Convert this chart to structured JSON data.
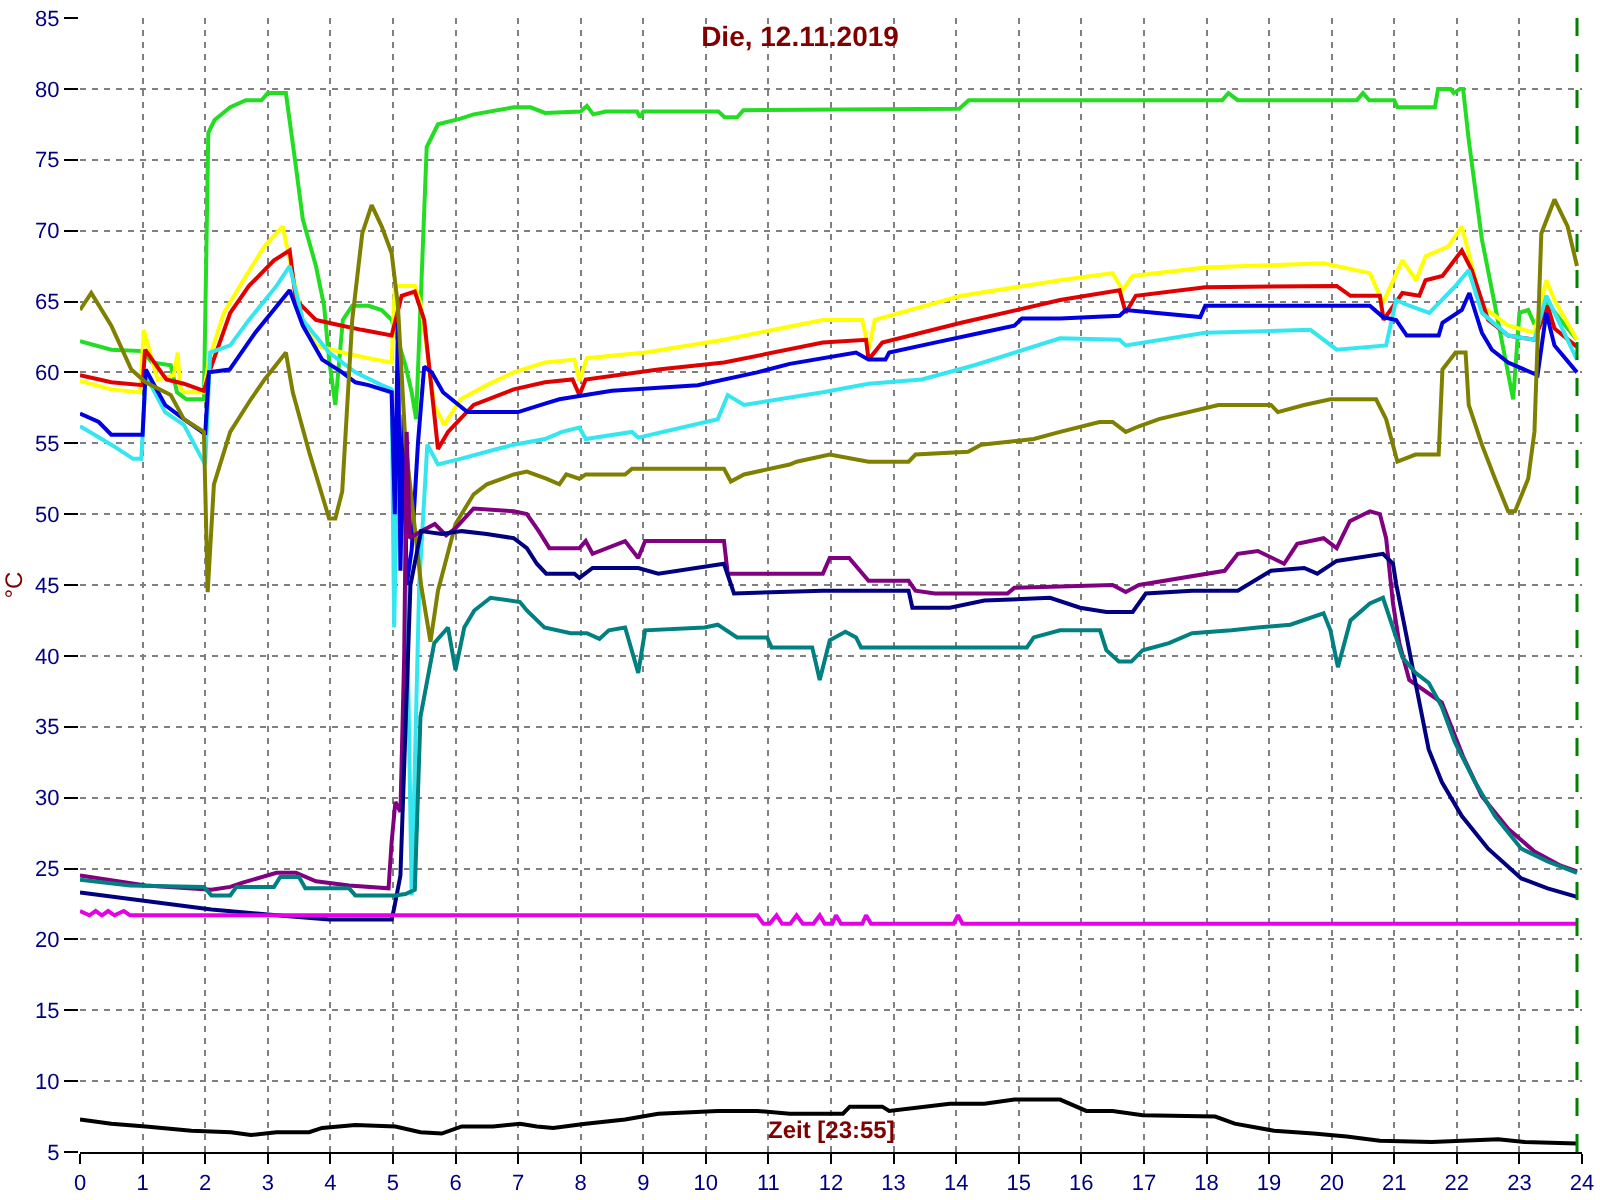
{
  "chart_data": {
    "type": "line",
    "title": "Die, 12.11.2019",
    "xlabel": "Zeit [23:55]",
    "ylabel": "°C",
    "xlim": [
      0,
      24
    ],
    "ylim": [
      5,
      85
    ],
    "xticks": [
      0,
      1,
      2,
      3,
      4,
      5,
      6,
      7,
      8,
      9,
      10,
      11,
      12,
      13,
      14,
      15,
      16,
      17,
      18,
      19,
      20,
      21,
      22,
      23,
      24
    ],
    "yticks": [
      5,
      10,
      15,
      20,
      25,
      30,
      35,
      40,
      45,
      50,
      55,
      60,
      65,
      70,
      75,
      80,
      85
    ],
    "grid": true,
    "marker": "none",
    "line_style": "solid",
    "ref_lines": [
      {
        "axis": "x",
        "value": 23.92,
        "color": "#008000",
        "line_style": "dashed"
      }
    ],
    "series": [
      {
        "color": "#22dd22",
        "x": [
          0,
          0.5,
          1.0,
          1.15,
          1.45,
          1.55,
          1.7,
          1.98,
          2.05,
          2.15,
          2.4,
          2.65,
          2.9,
          3.0,
          3.29,
          3.45,
          3.56,
          3.77,
          3.9,
          3.98,
          4.08,
          4.2,
          4.35,
          4.61,
          4.82,
          4.98,
          5.2,
          5.3,
          5.37,
          5.54,
          5.72,
          6.08,
          6.29,
          6.93,
          7.2,
          7.43,
          8.0,
          8.1,
          8.2,
          8.4,
          8.9,
          8.95,
          9.0,
          10.2,
          10.3,
          10.5,
          10.6,
          14.05,
          14.2,
          18.25,
          18.35,
          18.5,
          20.4,
          20.5,
          20.6,
          21.0,
          21.05,
          21.65,
          21.7,
          21.9,
          21.95,
          22.05,
          22.1,
          22.19,
          22.4,
          22.61,
          22.75,
          22.9,
          23.0,
          23.14,
          23.24,
          23.45,
          23.66,
          23.92
        ],
        "values": [
          62.2,
          61.6,
          61.5,
          60.7,
          60.5,
          58.6,
          58.1,
          58.1,
          76.9,
          77.8,
          78.7,
          79.2,
          79.2,
          79.7,
          79.7,
          74.5,
          70.8,
          67.5,
          64.7,
          60.9,
          57.7,
          63.7,
          64.7,
          64.7,
          64.4,
          63.7,
          60.5,
          58.6,
          56.7,
          75.9,
          77.5,
          77.9,
          78.2,
          78.7,
          78.7,
          78.3,
          78.4,
          78.8,
          78.2,
          78.4,
          78.4,
          78.0,
          78.4,
          78.4,
          78.0,
          78.0,
          78.5,
          78.6,
          79.2,
          79.2,
          79.7,
          79.2,
          79.2,
          79.7,
          79.2,
          79.2,
          78.7,
          78.7,
          80.0,
          80.0,
          79.7,
          80.0,
          80.0,
          76.4,
          69.4,
          64.7,
          61.5,
          58.1,
          64.2,
          64.4,
          63.4,
          64.9,
          63.7,
          62.3
        ]
      },
      {
        "color": "#ffff00",
        "x": [
          0,
          0.5,
          0.96,
          1.02,
          1.12,
          1.24,
          1.5,
          1.56,
          1.6,
          1.66,
          1.98,
          2.06,
          2.3,
          2.61,
          2.95,
          3.24,
          3.35,
          3.56,
          3.77,
          4.19,
          4.61,
          4.98,
          5.03,
          5.35,
          5.45,
          5.66,
          5.82,
          6.08,
          6.5,
          6.93,
          7.43,
          7.9,
          7.98,
          8.1,
          9.03,
          10.29,
          11.87,
          12.5,
          12.6,
          12.7,
          14.08,
          15.66,
          16.5,
          16.66,
          16.82,
          17.98,
          19.87,
          20.61,
          20.82,
          21.13,
          21.35,
          21.5,
          21.87,
          22.08,
          22.19,
          22.4,
          22.82,
          23.24,
          23.43,
          23.56,
          23.92
        ],
        "values": [
          59.4,
          58.8,
          58.6,
          63.0,
          61.4,
          59.5,
          59.8,
          61.4,
          59.0,
          58.6,
          58.6,
          60.9,
          64.2,
          66.5,
          68.9,
          70.3,
          67.9,
          63.7,
          61.9,
          61.4,
          61.0,
          60.7,
          66.1,
          66.1,
          64.7,
          57.7,
          56.3,
          58.1,
          59.1,
          60.0,
          60.7,
          60.9,
          59.4,
          61.0,
          61.4,
          62.3,
          63.7,
          63.7,
          61.6,
          63.7,
          65.4,
          66.5,
          67.0,
          65.8,
          66.8,
          67.4,
          67.7,
          67.0,
          64.9,
          67.9,
          66.5,
          68.2,
          68.9,
          70.3,
          68.4,
          64.7,
          63.3,
          62.8,
          66.5,
          65.1,
          62.3
        ]
      },
      {
        "color": "#e00000",
        "x": [
          0,
          0.5,
          1.0,
          1.04,
          1.38,
          1.66,
          1.98,
          2.08,
          2.4,
          2.7,
          3.1,
          3.35,
          3.45,
          3.77,
          4.08,
          4.5,
          4.98,
          5.14,
          5.35,
          5.5,
          5.72,
          5.88,
          6.29,
          6.93,
          7.43,
          7.87,
          7.98,
          8.08,
          9.24,
          10.29,
          11.87,
          12.56,
          12.6,
          12.82,
          14.08,
          15.66,
          16.61,
          16.71,
          16.87,
          17.98,
          20.08,
          20.3,
          20.77,
          20.83,
          21.13,
          21.4,
          21.5,
          21.77,
          22.08,
          22.24,
          22.5,
          22.82,
          23.24,
          23.45,
          23.56,
          23.92
        ],
        "values": [
          59.8,
          59.3,
          59.1,
          61.6,
          59.5,
          59.2,
          58.7,
          60.2,
          64.2,
          66.1,
          67.9,
          68.6,
          65.1,
          63.7,
          63.4,
          63.0,
          62.6,
          65.4,
          65.7,
          63.7,
          54.6,
          55.8,
          57.7,
          58.8,
          59.3,
          59.5,
          58.4,
          59.5,
          60.2,
          60.7,
          62.1,
          62.3,
          60.9,
          62.1,
          63.5,
          65.1,
          65.8,
          64.2,
          65.4,
          66.0,
          66.1,
          65.4,
          65.4,
          63.7,
          65.6,
          65.4,
          66.5,
          66.8,
          68.6,
          67.2,
          63.7,
          62.6,
          62.3,
          64.7,
          63.1,
          61.8
        ]
      },
      {
        "color": "#33e6f0",
        "x": [
          0,
          0.5,
          0.85,
          0.98,
          1.05,
          1.36,
          1.66,
          1.95,
          2.0,
          2.08,
          2.4,
          2.7,
          3.14,
          3.35,
          3.56,
          3.98,
          4.4,
          4.82,
          4.98,
          5.02,
          5.08,
          5.2,
          5.3,
          5.42,
          5.55,
          5.72,
          6.08,
          6.5,
          6.93,
          7.43,
          7.7,
          7.98,
          8.08,
          8.82,
          8.92,
          10.19,
          10.35,
          10.61,
          11.87,
          12.6,
          13.45,
          14.29,
          15.66,
          16.61,
          16.71,
          17.98,
          19.66,
          20.08,
          20.87,
          21.03,
          21.24,
          21.56,
          21.98,
          22.19,
          22.4,
          22.82,
          23.24,
          23.43,
          23.66,
          23.92
        ],
        "values": [
          56.2,
          54.9,
          53.9,
          53.9,
          59.8,
          57.2,
          56.3,
          53.9,
          53.5,
          61.4,
          61.9,
          63.7,
          66.1,
          67.5,
          63.7,
          61.4,
          60.0,
          59.1,
          58.8,
          42.0,
          55.0,
          50.0,
          23.1,
          45.0,
          54.9,
          53.5,
          53.9,
          54.4,
          54.9,
          55.3,
          55.8,
          56.1,
          55.3,
          55.8,
          55.4,
          56.7,
          58.4,
          57.7,
          58.6,
          59.2,
          59.5,
          60.5,
          62.4,
          62.3,
          61.9,
          62.8,
          63.0,
          61.6,
          61.9,
          65.1,
          64.7,
          64.2,
          66.1,
          67.2,
          64.2,
          62.6,
          62.3,
          65.4,
          63.3,
          60.9
        ]
      },
      {
        "color": "#0000e0",
        "x": [
          0,
          0.3,
          0.5,
          1.0,
          1.05,
          1.36,
          1.66,
          1.95,
          2.0,
          2.06,
          2.39,
          2.8,
          3.35,
          3.56,
          3.87,
          4.19,
          4.4,
          4.61,
          4.98,
          5.03,
          5.08,
          5.12,
          5.17,
          5.22,
          5.3,
          5.4,
          5.5,
          5.62,
          5.8,
          6.19,
          7.0,
          7.43,
          7.66,
          8.5,
          9.87,
          10.82,
          11.34,
          12.4,
          12.6,
          12.87,
          12.93,
          13.66,
          14.4,
          14.93,
          15.05,
          15.66,
          16.61,
          16.71,
          17.9,
          17.98,
          20.61,
          20.82,
          21.03,
          21.2,
          21.71,
          21.77,
          22.08,
          22.2,
          22.4,
          22.56,
          22.82,
          23.29,
          23.43,
          23.56,
          23.92
        ],
        "values": [
          57.1,
          56.5,
          55.6,
          55.6,
          60.2,
          57.7,
          56.7,
          55.8,
          55.6,
          60.0,
          60.2,
          62.8,
          65.8,
          63.3,
          60.9,
          60.0,
          59.3,
          59.1,
          58.6,
          50.0,
          63.5,
          46.0,
          57.0,
          45.0,
          47.5,
          55.0,
          60.4,
          60.0,
          58.6,
          57.2,
          57.2,
          57.8,
          58.1,
          58.7,
          59.1,
          60.0,
          60.6,
          61.4,
          60.9,
          60.9,
          61.4,
          62.1,
          62.8,
          63.3,
          63.8,
          63.8,
          64.0,
          64.4,
          63.9,
          64.7,
          64.7,
          63.9,
          63.7,
          62.6,
          62.6,
          63.5,
          64.4,
          65.6,
          62.8,
          61.6,
          60.7,
          59.8,
          64.2,
          61.9,
          60.0
        ]
      },
      {
        "color": "#808000",
        "x": [
          0,
          0.18,
          0.5,
          0.82,
          1.05,
          1.45,
          1.66,
          1.98,
          2.04,
          2.14,
          2.4,
          2.73,
          2.95,
          3.29,
          3.4,
          3.66,
          3.98,
          4.08,
          4.19,
          4.35,
          4.51,
          4.66,
          4.82,
          4.98,
          5.08,
          5.2,
          5.45,
          5.6,
          5.72,
          6.0,
          6.29,
          6.5,
          6.93,
          7.14,
          7.45,
          7.66,
          7.77,
          7.98,
          8.08,
          8.71,
          8.82,
          10.29,
          10.4,
          10.61,
          11.34,
          11.45,
          11.98,
          12.6,
          13.24,
          13.35,
          14.19,
          14.4,
          15.24,
          15.66,
          16.29,
          16.5,
          16.71,
          16.92,
          17.24,
          18.19,
          19.03,
          19.14,
          19.56,
          19.98,
          20.71,
          20.87,
          21.05,
          21.34,
          21.71,
          21.77,
          21.98,
          22.14,
          22.19,
          22.4,
          22.61,
          22.82,
          22.93,
          23.14,
          23.24,
          23.35,
          23.56,
          23.77,
          23.92
        ],
        "values": [
          64.4,
          65.6,
          63.3,
          60.2,
          59.3,
          58.4,
          56.7,
          55.8,
          44.5,
          52.1,
          55.8,
          58.1,
          59.5,
          61.4,
          58.6,
          54.4,
          49.7,
          49.7,
          51.6,
          63.7,
          69.8,
          71.8,
          70.3,
          68.4,
          64.7,
          55.0,
          45.0,
          41.0,
          44.6,
          49.3,
          51.4,
          52.1,
          52.8,
          53.0,
          52.5,
          52.1,
          52.8,
          52.5,
          52.8,
          52.8,
          53.2,
          53.2,
          52.3,
          52.8,
          53.5,
          53.7,
          54.2,
          53.7,
          53.7,
          54.2,
          54.4,
          54.9,
          55.3,
          55.8,
          56.5,
          56.5,
          55.8,
          56.2,
          56.7,
          57.7,
          57.7,
          57.2,
          57.7,
          58.1,
          58.1,
          56.7,
          53.7,
          54.2,
          54.2,
          60.2,
          61.4,
          61.4,
          57.7,
          54.9,
          52.5,
          50.2,
          50.2,
          52.5,
          55.8,
          69.8,
          72.2,
          70.3,
          67.5
        ]
      },
      {
        "color": "#800080",
        "x": [
          0,
          1.05,
          2.1,
          2.4,
          2.6,
          3.14,
          3.45,
          3.77,
          4.3,
          4.93,
          4.98,
          5.04,
          5.12,
          5.18,
          5.22,
          5.27,
          5.45,
          5.67,
          5.85,
          6.0,
          6.29,
          6.93,
          7.14,
          7.33,
          7.5,
          7.98,
          8.08,
          8.19,
          8.71,
          8.92,
          9.03,
          10.29,
          10.35,
          11.87,
          11.98,
          12.29,
          12.6,
          13.24,
          13.35,
          13.66,
          14.82,
          14.93,
          15.66,
          16.5,
          16.71,
          16.92,
          18.29,
          18.5,
          18.82,
          19.24,
          19.45,
          19.87,
          20.08,
          20.29,
          20.61,
          20.77,
          20.87,
          20.98,
          21.08,
          21.24,
          21.76,
          22.1,
          22.4,
          22.82,
          23.24,
          23.66,
          23.92
        ],
        "values": [
          24.5,
          23.8,
          23.5,
          23.7,
          24.0,
          24.7,
          24.7,
          24.1,
          23.8,
          23.6,
          26.9,
          29.7,
          29.0,
          40.0,
          55.8,
          48.3,
          48.8,
          49.3,
          48.5,
          49.0,
          50.4,
          50.2,
          50.0,
          48.8,
          47.6,
          47.6,
          48.1,
          47.2,
          48.1,
          46.9,
          48.1,
          48.1,
          45.8,
          45.8,
          46.9,
          46.9,
          45.3,
          45.3,
          44.6,
          44.4,
          44.4,
          44.8,
          44.9,
          45.0,
          44.5,
          45.0,
          46.0,
          47.2,
          47.4,
          46.5,
          47.9,
          48.3,
          47.6,
          49.5,
          50.2,
          50.0,
          48.3,
          43.7,
          40.9,
          38.3,
          36.7,
          32.9,
          30.1,
          27.8,
          26.2,
          25.2,
          24.8
        ]
      },
      {
        "color": "#000080",
        "x": [
          0,
          1.05,
          2.1,
          3.14,
          3.98,
          4.98,
          5.02,
          5.12,
          5.28,
          5.45,
          5.78,
          6.1,
          6.5,
          6.93,
          7.14,
          7.3,
          7.45,
          7.9,
          7.98,
          8.19,
          8.92,
          9.24,
          10.29,
          10.45,
          11.87,
          13.24,
          13.3,
          13.9,
          14.45,
          15.5,
          15.98,
          16.4,
          16.82,
          17.03,
          17.77,
          18.5,
          19.03,
          19.56,
          19.77,
          20.08,
          20.82,
          20.98,
          21.03,
          21.2,
          21.34,
          21.55,
          21.76,
          22.08,
          22.5,
          23.03,
          23.45,
          23.92
        ],
        "values": [
          23.3,
          22.7,
          22.1,
          21.7,
          21.4,
          21.4,
          22.2,
          24.5,
          45.0,
          48.8,
          48.6,
          48.8,
          48.6,
          48.3,
          47.6,
          46.5,
          45.8,
          45.8,
          45.5,
          46.2,
          46.2,
          45.8,
          46.5,
          44.4,
          44.6,
          44.6,
          43.4,
          43.4,
          43.9,
          44.1,
          43.4,
          43.1,
          43.1,
          44.4,
          44.6,
          44.6,
          46.0,
          46.2,
          45.8,
          46.7,
          47.2,
          46.5,
          45.1,
          41.3,
          38.1,
          33.4,
          31.1,
          28.7,
          26.4,
          24.3,
          23.6,
          23.0
        ]
      },
      {
        "color": "#008080",
        "x": [
          0,
          0.8,
          1.98,
          2.1,
          2.4,
          2.5,
          3.1,
          3.2,
          3.5,
          3.6,
          4.3,
          4.4,
          5.04,
          5.2,
          5.35,
          5.44,
          5.66,
          5.88,
          6.0,
          6.14,
          6.3,
          6.56,
          7.03,
          7.14,
          7.42,
          7.84,
          8.1,
          8.3,
          8.45,
          8.71,
          8.92,
          9.03,
          9.98,
          10.19,
          10.5,
          10.98,
          11.05,
          11.7,
          11.82,
          11.98,
          12.23,
          12.4,
          12.48,
          15.13,
          15.24,
          15.66,
          16.3,
          16.4,
          16.6,
          16.8,
          16.98,
          17.4,
          17.77,
          18.4,
          18.82,
          19.34,
          19.87,
          19.98,
          20.1,
          20.3,
          20.61,
          20.82,
          21.03,
          21.13,
          21.34,
          21.55,
          21.76,
          21.97,
          22.29,
          22.61,
          23.03,
          23.45,
          23.92
        ],
        "values": [
          24.2,
          23.8,
          23.7,
          23.1,
          23.1,
          23.7,
          23.7,
          24.4,
          24.4,
          23.6,
          23.6,
          23.1,
          23.1,
          23.2,
          23.5,
          35.7,
          40.9,
          42.0,
          39.0,
          42.0,
          43.2,
          44.1,
          43.8,
          43.2,
          42.0,
          41.6,
          41.6,
          41.2,
          41.8,
          42.0,
          38.8,
          41.8,
          42.0,
          42.2,
          41.3,
          41.3,
          40.6,
          40.6,
          38.3,
          41.1,
          41.7,
          41.3,
          40.6,
          40.6,
          41.3,
          41.8,
          41.8,
          40.4,
          39.6,
          39.6,
          40.4,
          40.9,
          41.6,
          41.8,
          42.0,
          42.2,
          43.0,
          41.8,
          39.2,
          42.5,
          43.7,
          44.1,
          41.3,
          39.9,
          38.8,
          38.1,
          36.4,
          33.9,
          31.1,
          28.7,
          26.4,
          25.5,
          24.7
        ]
      },
      {
        "color": "#e600e6",
        "x": [
          0,
          0.15,
          0.25,
          0.35,
          0.45,
          0.55,
          0.7,
          0.8,
          10.82,
          10.92,
          11.02,
          11.13,
          11.22,
          11.35,
          11.45,
          11.55,
          11.72,
          11.82,
          11.9,
          12.02,
          12.08,
          12.16,
          12.5,
          12.56,
          12.64,
          13.96,
          14.03,
          14.1,
          23.92
        ],
        "values": [
          22.0,
          21.7,
          22.0,
          21.7,
          22.0,
          21.7,
          22.0,
          21.7,
          21.7,
          21.1,
          21.1,
          21.7,
          21.1,
          21.1,
          21.7,
          21.1,
          21.1,
          21.7,
          21.1,
          21.1,
          21.7,
          21.1,
          21.1,
          21.7,
          21.1,
          21.1,
          21.7,
          21.1,
          21.1
        ]
      },
      {
        "color": "#000000",
        "x": [
          0,
          0.5,
          1.05,
          1.78,
          2.41,
          2.73,
          3.14,
          3.66,
          3.87,
          4.4,
          5.04,
          5.44,
          5.78,
          6.1,
          6.6,
          7.03,
          7.3,
          7.56,
          8.08,
          8.71,
          9.24,
          10.19,
          10.82,
          11.34,
          12.19,
          12.3,
          12.82,
          12.93,
          13.9,
          14.45,
          14.93,
          15.66,
          16.08,
          16.5,
          16.98,
          18.14,
          18.45,
          19.08,
          19.71,
          20.24,
          20.77,
          21.6,
          22.66,
          23.08,
          23.92
        ],
        "values": [
          7.3,
          7.0,
          6.8,
          6.5,
          6.4,
          6.2,
          6.4,
          6.4,
          6.7,
          6.9,
          6.8,
          6.4,
          6.3,
          6.8,
          6.8,
          7.0,
          6.8,
          6.7,
          7.0,
          7.3,
          7.7,
          7.9,
          7.9,
          7.7,
          7.7,
          8.2,
          8.2,
          7.9,
          8.4,
          8.4,
          8.7,
          8.7,
          7.9,
          7.9,
          7.6,
          7.5,
          7.0,
          6.5,
          6.3,
          6.1,
          5.8,
          5.7,
          5.9,
          5.7,
          5.6
        ]
      }
    ]
  }
}
